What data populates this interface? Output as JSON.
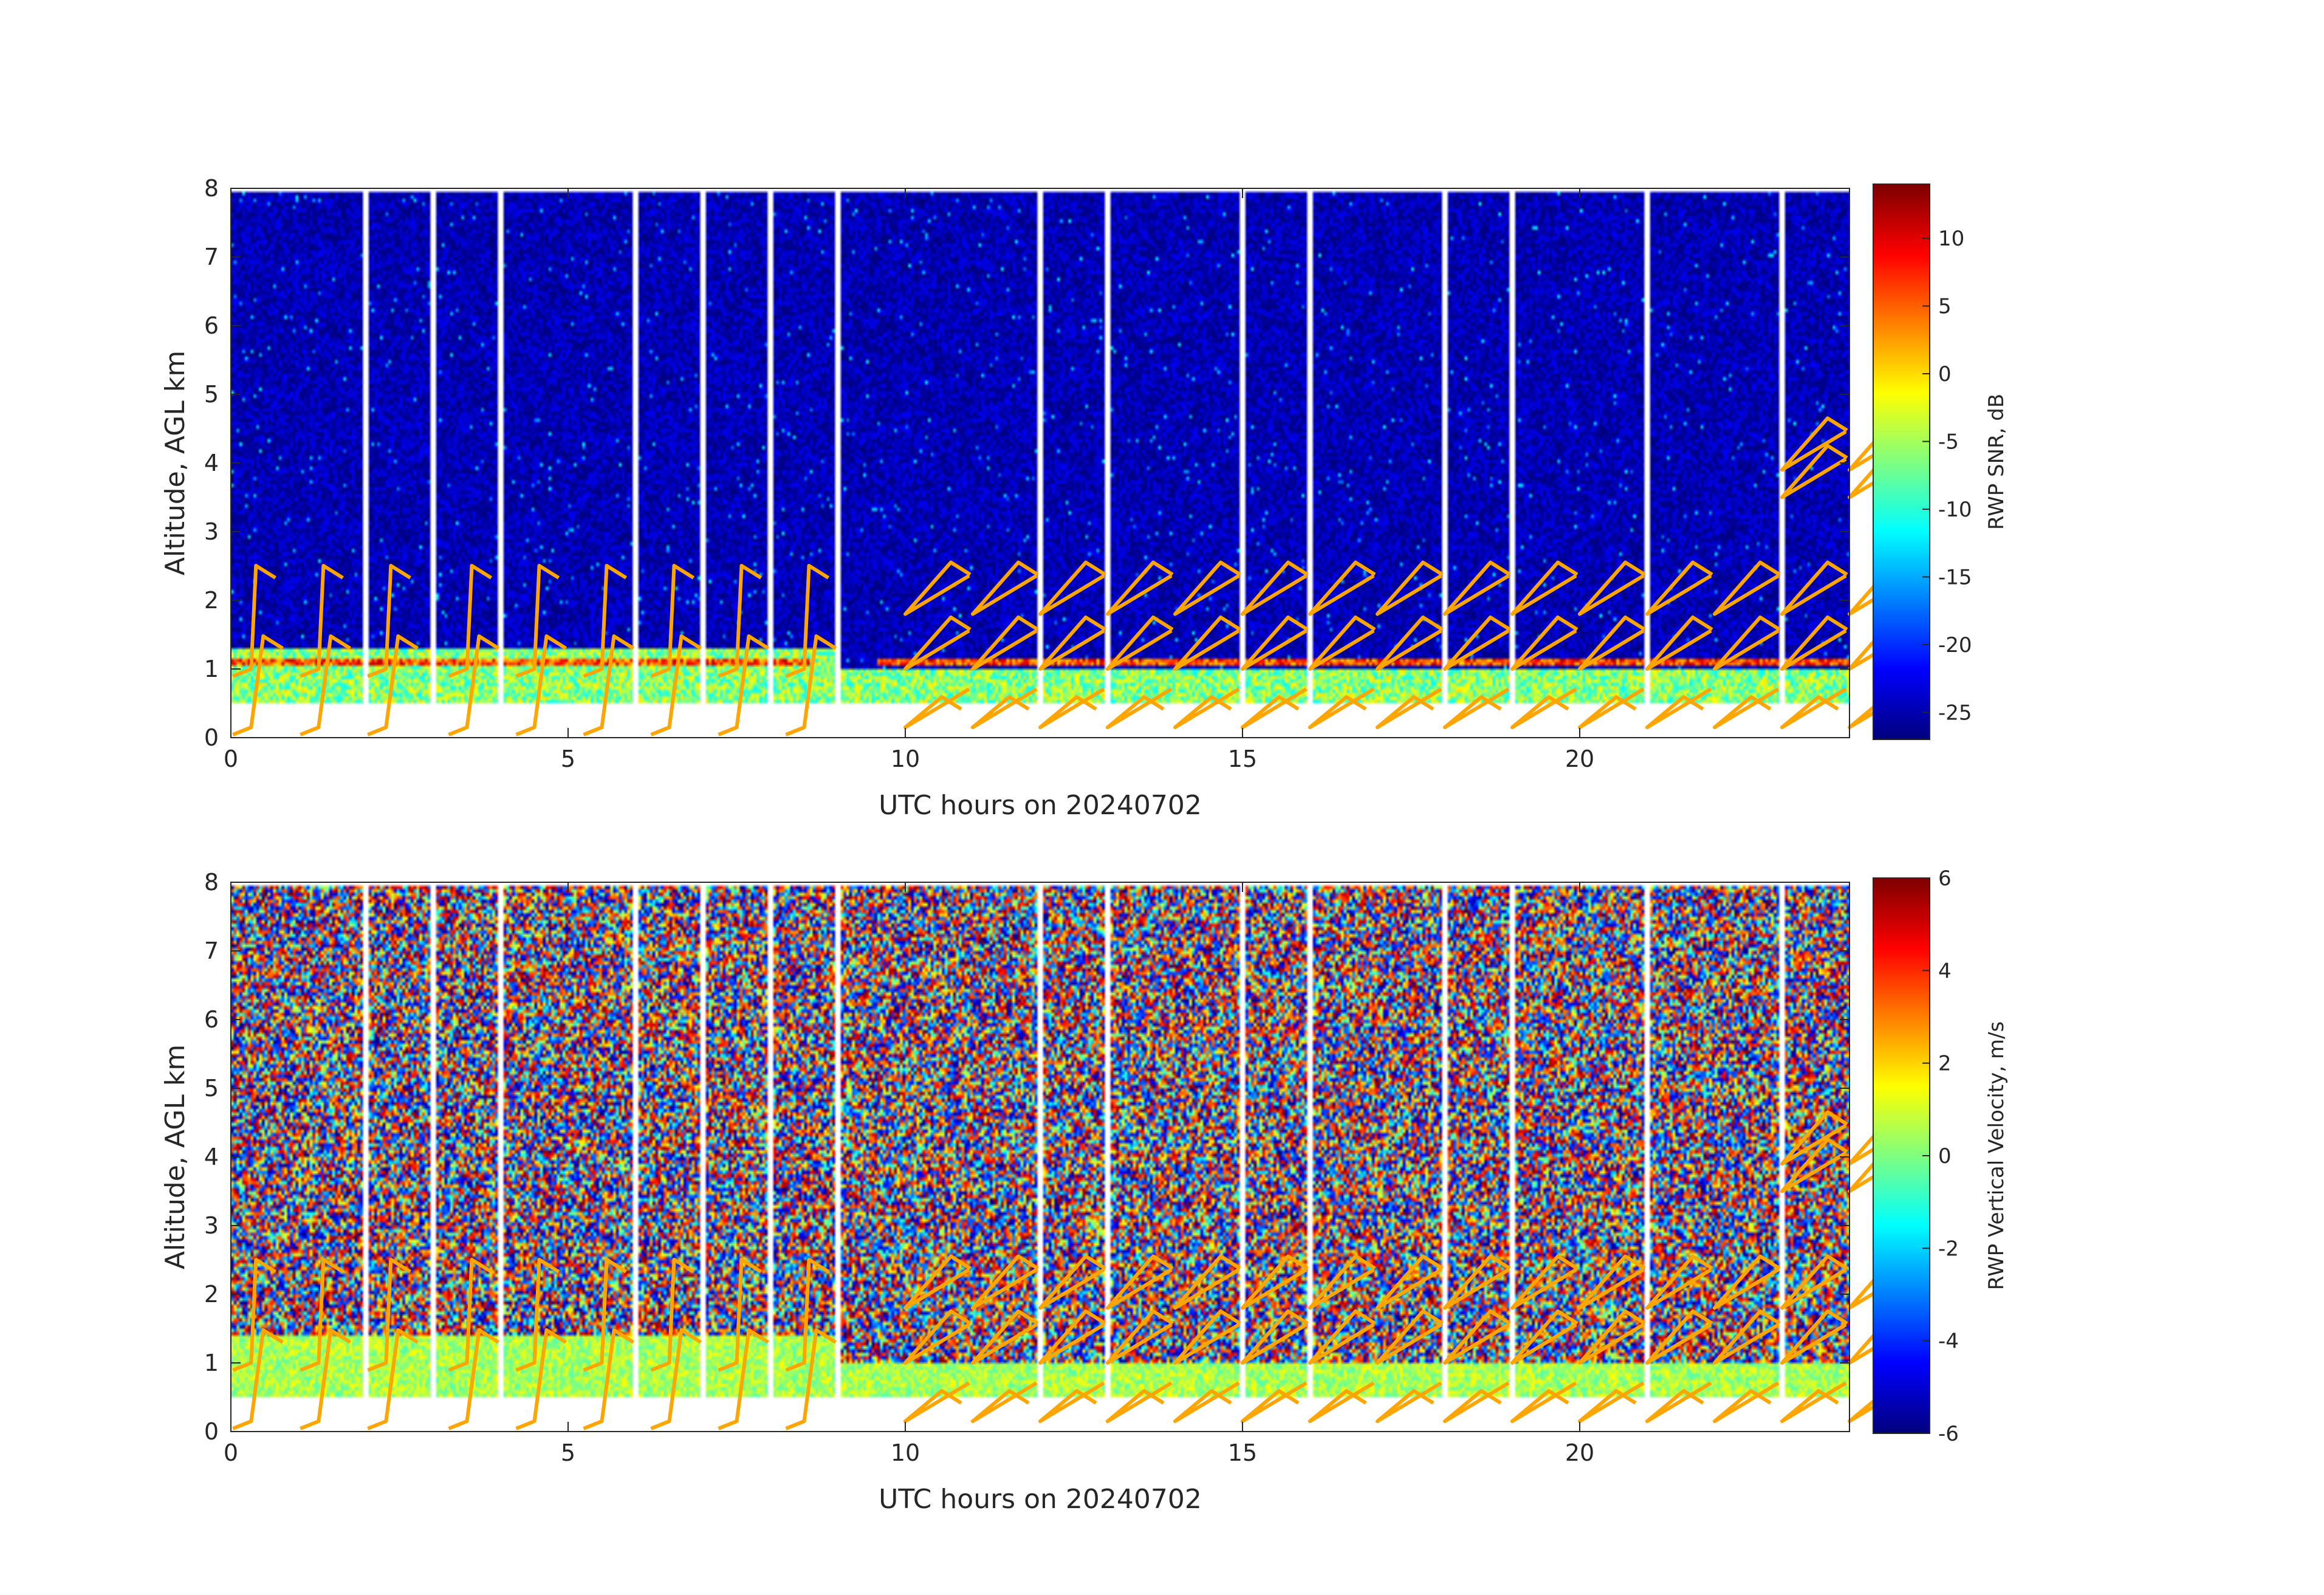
{
  "chart_data": [
    {
      "type": "heatmap",
      "title": "",
      "xlabel": "UTC hours on 20240702",
      "ylabel": "Altitude, AGL km",
      "xlim": [
        0,
        24
      ],
      "ylim": [
        0,
        8
      ],
      "xticks": [
        0,
        5,
        10,
        15,
        20
      ],
      "yticks": [
        0,
        1,
        2,
        3,
        4,
        5,
        6,
        7,
        8
      ],
      "colorbar": {
        "label": "RWP SNR, dB",
        "range": [
          -27,
          14
        ],
        "ticks": [
          10,
          5,
          0,
          -5,
          -10,
          -15,
          -20,
          -25
        ],
        "colormap": "jet"
      },
      "data_gaps_utc_hours": [
        2,
        3,
        4,
        6,
        7,
        8,
        9,
        12,
        13,
        15,
        16,
        18,
        19,
        21,
        23
      ],
      "field_summary": {
        "background_snr_db": -25,
        "boundary_layer_top_km_before_9utc": 1.3,
        "boundary_layer_top_km_after_9utc": 1.0,
        "strong_echo_layer_km": 1.1,
        "strong_echo_snr_db": 12,
        "lowest_range_gate_km": 0.5
      },
      "wind_barbs": {
        "color": "#ffa500",
        "levels_km": [
          0.15,
          1.0,
          1.8,
          3.5,
          3.9
        ],
        "times_utc_hours": [
          0.3,
          1.3,
          2.3,
          3.5,
          4.5,
          5.5,
          6.5,
          7.5,
          8.5,
          10,
          11,
          12,
          13,
          14,
          15,
          16,
          17,
          18,
          19,
          20,
          21,
          22,
          23,
          24
        ]
      }
    },
    {
      "type": "heatmap",
      "title": "",
      "xlabel": "UTC hours on 20240702",
      "ylabel": "Altitude, AGL km",
      "xlim": [
        0,
        24
      ],
      "ylim": [
        0,
        8
      ],
      "xticks": [
        0,
        5,
        10,
        15,
        20
      ],
      "yticks": [
        0,
        1,
        2,
        3,
        4,
        5,
        6,
        7,
        8
      ],
      "colorbar": {
        "label": "RWP Vertical Velocity, m/s",
        "range": [
          -6,
          6
        ],
        "ticks": [
          6,
          4,
          2,
          0,
          -2,
          -4,
          -6
        ],
        "colormap": "jet"
      },
      "data_gaps_utc_hours": [
        2,
        3,
        4,
        6,
        7,
        8,
        9,
        12,
        13,
        15,
        16,
        18,
        19,
        21,
        23
      ],
      "field_summary": {
        "upper_noise_range_m_s": [
          -6,
          6
        ],
        "boundary_layer_velocity_m_s": 0.5,
        "boundary_layer_top_km_before_9utc": 1.4,
        "boundary_layer_top_km_after_9utc": 1.0,
        "lowest_range_gate_km": 0.5
      },
      "wind_barbs": {
        "color": "#ffa500",
        "levels_km": [
          0.15,
          1.0,
          1.8,
          3.5,
          3.9
        ],
        "times_utc_hours": [
          0.3,
          1.3,
          2.3,
          3.5,
          4.5,
          5.5,
          6.5,
          7.5,
          8.5,
          10,
          11,
          12,
          13,
          14,
          15,
          16,
          17,
          18,
          19,
          20,
          21,
          22,
          23,
          24
        ]
      }
    }
  ]
}
